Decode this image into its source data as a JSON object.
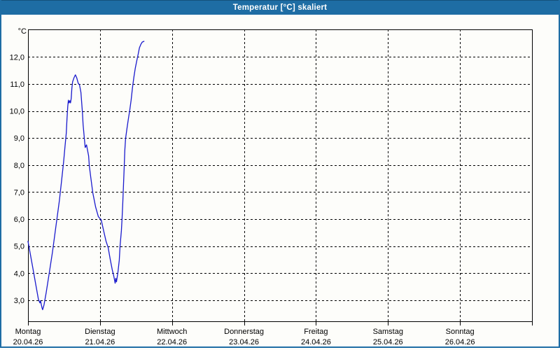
{
  "window": {
    "title": "Temperatur [°C] skaliert"
  },
  "colors": {
    "titlebar": "#1e6da4",
    "titlebar_top_edge": "#14517b",
    "window_border": "#1e6da4",
    "frame": "#000000",
    "grid": "#000000",
    "line": "#1a1acd",
    "background": "#fdfdfa",
    "title_text": "#ffffff",
    "axis_text": "#000000"
  },
  "chart_data": {
    "type": "line",
    "title": "Temperatur [°C] skaliert",
    "ylabel": "°C",
    "xlabel": "",
    "ylim": [
      2.22,
      13.02
    ],
    "xlim_days": [
      0,
      7
    ],
    "grid": "dashed",
    "legend": "none",
    "y_axis": {
      "unit_label": "°C",
      "tick_values": [
        3,
        4,
        5,
        6,
        7,
        8,
        9,
        10,
        11,
        12
      ],
      "tick_labels": [
        "3,0",
        "4,0",
        "5,0",
        "6,0",
        "7,0",
        "8,0",
        "9,0",
        "10,0",
        "11,0",
        "12,0"
      ]
    },
    "x_axis": {
      "tick_day_positions": [
        0,
        1,
        2,
        3,
        4,
        5,
        6,
        7
      ],
      "day_labels": [
        {
          "day": "Montag",
          "date": "20.04.26",
          "pos": 0
        },
        {
          "day": "Dienstag",
          "date": "21.04.26",
          "pos": 1
        },
        {
          "day": "Mittwoch",
          "date": "22.04.26",
          "pos": 2
        },
        {
          "day": "Donnerstag",
          "date": "23.04.26",
          "pos": 3
        },
        {
          "day": "Freitag",
          "date": "24.04.26",
          "pos": 4
        },
        {
          "day": "Samstag",
          "date": "25.04.26",
          "pos": 5
        },
        {
          "day": "Sonntag",
          "date": "26.04.26",
          "pos": 6
        }
      ]
    },
    "series": [
      {
        "name": "Temperatur",
        "unit": "°C",
        "color": "#1a1acd",
        "points": [
          [
            0.0,
            5.18
          ],
          [
            0.03,
            4.74
          ],
          [
            0.07,
            4.15
          ],
          [
            0.11,
            3.55
          ],
          [
            0.145,
            3.03
          ],
          [
            0.165,
            2.9
          ],
          [
            0.174,
            2.98
          ],
          [
            0.194,
            2.72
          ],
          [
            0.203,
            2.65
          ],
          [
            0.223,
            2.83
          ],
          [
            0.252,
            3.27
          ],
          [
            0.29,
            3.91
          ],
          [
            0.34,
            4.79
          ],
          [
            0.387,
            5.72
          ],
          [
            0.436,
            6.68
          ],
          [
            0.465,
            7.38
          ],
          [
            0.494,
            8.1
          ],
          [
            0.513,
            8.67
          ],
          [
            0.532,
            9.19
          ],
          [
            0.542,
            9.71
          ],
          [
            0.552,
            10.17
          ],
          [
            0.561,
            10.4
          ],
          [
            0.571,
            10.3
          ],
          [
            0.581,
            10.38
          ],
          [
            0.59,
            10.3
          ],
          [
            0.6,
            10.46
          ],
          [
            0.61,
            10.85
          ],
          [
            0.619,
            11.08
          ],
          [
            0.639,
            11.23
          ],
          [
            0.658,
            11.34
          ],
          [
            0.677,
            11.23
          ],
          [
            0.697,
            11.03
          ],
          [
            0.716,
            10.97
          ],
          [
            0.735,
            10.69
          ],
          [
            0.755,
            9.97
          ],
          [
            0.765,
            9.5
          ],
          [
            0.784,
            8.96
          ],
          [
            0.794,
            8.65
          ],
          [
            0.813,
            8.75
          ],
          [
            0.823,
            8.6
          ],
          [
            0.842,
            8.34
          ],
          [
            0.852,
            7.97
          ],
          [
            0.871,
            7.56
          ],
          [
            0.9,
            6.97
          ],
          [
            0.939,
            6.45
          ],
          [
            0.977,
            6.09
          ],
          [
            1.016,
            5.98
          ],
          [
            1.055,
            5.52
          ],
          [
            1.084,
            5.18
          ],
          [
            1.113,
            4.95
          ],
          [
            1.142,
            4.51
          ],
          [
            1.171,
            4.12
          ],
          [
            1.19,
            3.91
          ],
          [
            1.2,
            3.78
          ],
          [
            1.21,
            3.63
          ],
          [
            1.219,
            3.81
          ],
          [
            1.229,
            3.68
          ],
          [
            1.248,
            4.02
          ],
          [
            1.268,
            4.48
          ],
          [
            1.278,
            5.0
          ],
          [
            1.297,
            5.57
          ],
          [
            1.307,
            6.03
          ],
          [
            1.316,
            6.6
          ],
          [
            1.326,
            7.25
          ],
          [
            1.336,
            7.9
          ],
          [
            1.345,
            8.54
          ],
          [
            1.355,
            8.98
          ],
          [
            1.374,
            9.34
          ],
          [
            1.394,
            9.71
          ],
          [
            1.413,
            10.02
          ],
          [
            1.432,
            10.4
          ],
          [
            1.452,
            10.87
          ],
          [
            1.471,
            11.26
          ],
          [
            1.49,
            11.59
          ],
          [
            1.51,
            11.85
          ],
          [
            1.529,
            12.09
          ],
          [
            1.548,
            12.34
          ],
          [
            1.568,
            12.47
          ],
          [
            1.587,
            12.55
          ],
          [
            1.611,
            12.58
          ]
        ]
      }
    ]
  }
}
